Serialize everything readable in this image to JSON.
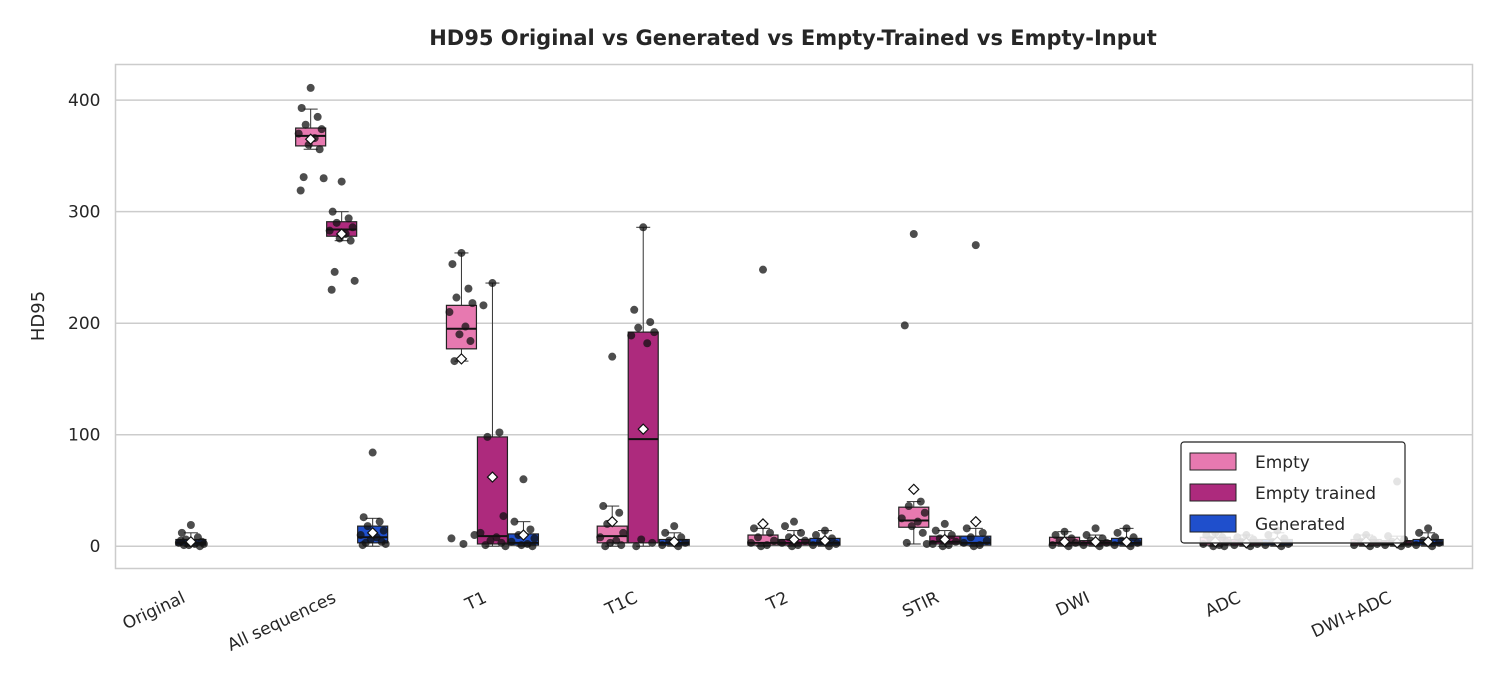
{
  "chart_data": {
    "type": "box",
    "title": "HD95 Original vs Generated vs Empty-Trained vs Empty-Input",
    "ylabel": "HD95",
    "ylim": [
      -20,
      432
    ],
    "yticks": [
      0,
      100,
      200,
      300,
      400
    ],
    "grid": "horizontal",
    "legend_position": "lower-right",
    "categories": [
      "Original",
      "All sequences",
      "T1",
      "T1C",
      "T2",
      "STIR",
      "DWI",
      "ADC",
      "DWI+ADC"
    ],
    "colors": {
      "Original": "#1f4fcc",
      "Empty": "#e779b0",
      "Empty trained": "#ad2a7d",
      "Generated": "#1f4fcc"
    },
    "legend": [
      "Empty",
      "Empty trained",
      "Generated"
    ],
    "series": [
      {
        "name": "Original",
        "boxes": [
          {
            "category": "Original",
            "q1": 1,
            "median": 3,
            "q3": 6,
            "lo": 0,
            "hi": 12,
            "mean": 4,
            "points": [
              19,
              12,
              8,
              6,
              4,
              3,
              2,
              1,
              0,
              1,
              2,
              5
            ]
          }
        ]
      },
      {
        "name": "Empty",
        "boxes": [
          {
            "category": "All sequences",
            "q1": 359,
            "median": 368,
            "q3": 375,
            "lo": 356,
            "hi": 392,
            "mean": 365,
            "points": [
              411,
              393,
              385,
              378,
              374,
              370,
              366,
              360,
              356,
              331,
              330,
              319
            ]
          },
          {
            "category": "T1",
            "q1": 177,
            "median": 195,
            "q3": 216,
            "lo": 166,
            "hi": 263,
            "mean": 168,
            "points": [
              263,
              253,
              231,
              223,
              218,
              210,
              197,
              190,
              184,
              166,
              10,
              7,
              2
            ]
          },
          {
            "category": "T1C",
            "q1": 3,
            "median": 9,
            "q3": 18,
            "lo": 0,
            "hi": 36,
            "mean": 22,
            "points": [
              170,
              36,
              30,
              20,
              12,
              8,
              5,
              3,
              1,
              0
            ]
          },
          {
            "category": "T2",
            "q1": 1,
            "median": 3,
            "q3": 10,
            "lo": 0,
            "hi": 16,
            "mean": 20,
            "points": [
              248,
              16,
              12,
              8,
              5,
              3,
              1,
              0
            ]
          },
          {
            "category": "STIR",
            "q1": 17,
            "median": 23,
            "q3": 35,
            "lo": 2,
            "hi": 40,
            "mean": 51,
            "points": [
              280,
              198,
              40,
              36,
              30,
              25,
              22,
              18,
              12,
              3,
              2
            ]
          },
          {
            "category": "DWI",
            "q1": 1,
            "median": 3,
            "q3": 8,
            "lo": 0,
            "hi": 13,
            "mean": 4,
            "points": [
              13,
              10,
              7,
              5,
              3,
              1,
              0
            ]
          },
          {
            "category": "ADC",
            "q1": 1,
            "median": 3,
            "q3": 8,
            "lo": 0,
            "hi": 12,
            "mean": 4,
            "points": [
              12,
              10,
              8,
              6,
              4,
              2,
              1,
              0,
              0
            ]
          },
          {
            "category": "DWI+ADC",
            "q1": 1,
            "median": 3,
            "q3": 6,
            "lo": 0,
            "hi": 10,
            "mean": 4,
            "points": [
              10,
              8,
              6,
              4,
              2,
              1,
              0
            ]
          }
        ]
      },
      {
        "name": "Empty trained",
        "boxes": [
          {
            "category": "All sequences",
            "q1": 278,
            "median": 284,
            "q3": 291,
            "lo": 274,
            "hi": 300,
            "mean": 280,
            "points": [
              327,
              300,
              294,
              290,
              286,
              283,
              280,
              276,
              274,
              246,
              238,
              230
            ]
          },
          {
            "category": "T1",
            "q1": 2,
            "median": 9,
            "q3": 98,
            "lo": 0,
            "hi": 236,
            "mean": 62,
            "points": [
              236,
              216,
              102,
              98,
              27,
              12,
              8,
              5,
              3,
              1,
              0
            ]
          },
          {
            "category": "T1C",
            "q1": 3,
            "median": 96,
            "q3": 192,
            "lo": 0,
            "hi": 286,
            "mean": 105,
            "points": [
              286,
              212,
              201,
              196,
              192,
              189,
              182,
              6,
              3,
              0
            ]
          },
          {
            "category": "T2",
            "q1": 1,
            "median": 3,
            "q3": 6,
            "lo": 0,
            "hi": 14,
            "mean": 6,
            "points": [
              22,
              18,
              12,
              8,
              5,
              3,
              1,
              0
            ]
          },
          {
            "category": "STIR",
            "q1": 2,
            "median": 4,
            "q3": 9,
            "lo": 0,
            "hi": 14,
            "mean": 6,
            "points": [
              20,
              14,
              10,
              7,
              4,
              2,
              1,
              0
            ]
          },
          {
            "category": "DWI",
            "q1": 1,
            "median": 3,
            "q3": 5,
            "lo": 0,
            "hi": 10,
            "mean": 4,
            "points": [
              16,
              10,
              7,
              5,
              3,
              1,
              0
            ]
          },
          {
            "category": "ADC",
            "q1": 1,
            "median": 3,
            "q3": 6,
            "lo": 0,
            "hi": 10,
            "mean": 3,
            "points": [
              10,
              8,
              6,
              4,
              2,
              1,
              0
            ]
          },
          {
            "category": "DWI+ADC",
            "q1": 1,
            "median": 2,
            "q3": 5,
            "lo": 0,
            "hi": 9,
            "mean": 3,
            "points": [
              58,
              9,
              6,
              4,
              2,
              1,
              0
            ]
          }
        ]
      },
      {
        "name": "Generated",
        "boxes": [
          {
            "category": "All sequences",
            "q1": 3,
            "median": 8,
            "q3": 18,
            "lo": 0,
            "hi": 25,
            "mean": 12,
            "points": [
              84,
              26,
              22,
              18,
              14,
              10,
              8,
              6,
              4,
              3,
              2,
              1
            ]
          },
          {
            "category": "T1",
            "q1": 1,
            "median": 3,
            "q3": 11,
            "lo": 0,
            "hi": 22,
            "mean": 10,
            "points": [
              60,
              22,
              15,
              10,
              7,
              4,
              2,
              1,
              0
            ]
          },
          {
            "category": "T1C",
            "q1": 1,
            "median": 3,
            "q3": 6,
            "lo": 0,
            "hi": 12,
            "mean": 4,
            "points": [
              18,
              12,
              8,
              5,
              3,
              1,
              0
            ]
          },
          {
            "category": "T2",
            "q1": 1,
            "median": 3,
            "q3": 7,
            "lo": 0,
            "hi": 14,
            "mean": 5,
            "points": [
              14,
              10,
              7,
              4,
              2,
              1,
              0
            ]
          },
          {
            "category": "STIR",
            "q1": 1,
            "median": 3,
            "q3": 9,
            "lo": 0,
            "hi": 16,
            "mean": 22,
            "points": [
              270,
              16,
              12,
              8,
              5,
              3,
              1,
              0
            ]
          },
          {
            "category": "DWI",
            "q1": 1,
            "median": 3,
            "q3": 7,
            "lo": 0,
            "hi": 16,
            "mean": 4,
            "points": [
              16,
              12,
              8,
              5,
              3,
              1,
              0
            ]
          },
          {
            "category": "ADC",
            "q1": 1,
            "median": 3,
            "q3": 6,
            "lo": 0,
            "hi": 12,
            "mean": 4,
            "points": [
              14,
              10,
              7,
              4,
              2,
              1,
              0
            ]
          },
          {
            "category": "DWI+ADC",
            "q1": 1,
            "median": 3,
            "q3": 6,
            "lo": 0,
            "hi": 12,
            "mean": 4,
            "points": [
              16,
              12,
              8,
              5,
              3,
              1,
              0
            ]
          }
        ]
      }
    ]
  }
}
